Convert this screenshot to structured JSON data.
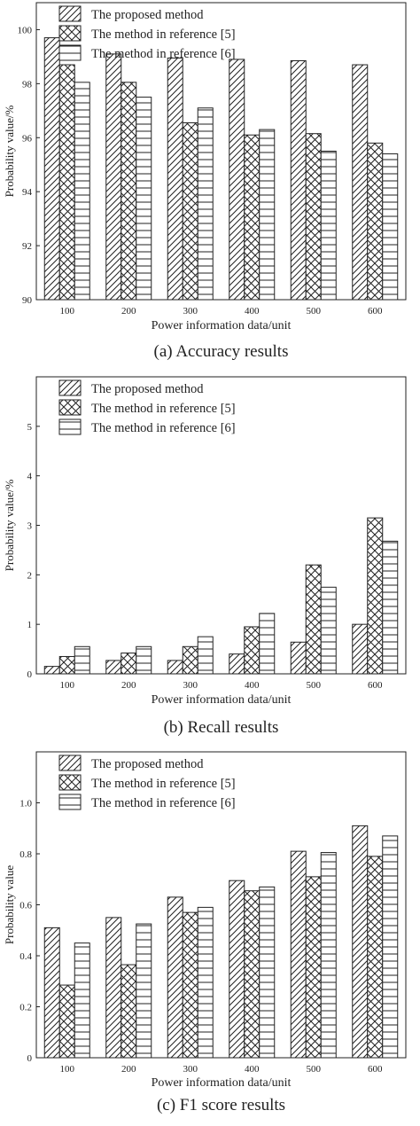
{
  "patterns": {
    "hatch": "diagonal-hatch",
    "cross": "cross-hatch",
    "horiz": "horizontal-lines"
  },
  "chart_data": [
    {
      "type": "bar",
      "title": "",
      "caption": "(a) Accuracy results",
      "xlabel": "Power information data/unit",
      "ylabel": "Probability value/%",
      "categories": [
        "100",
        "200",
        "300",
        "400",
        "500",
        "600"
      ],
      "ylim": [
        90,
        101
      ],
      "yticks": [
        "90",
        "92",
        "94",
        "96",
        "98",
        "100"
      ],
      "legend_position": "top-left",
      "series": [
        {
          "name": "The proposed method",
          "values": [
            99.7,
            99.1,
            98.95,
            98.9,
            98.85,
            98.7
          ]
        },
        {
          "name": "The method in reference [5]",
          "values": [
            98.7,
            98.05,
            96.55,
            96.1,
            96.15,
            95.8
          ]
        },
        {
          "name": "The method in reference [6]",
          "values": [
            98.05,
            97.5,
            97.1,
            96.3,
            95.5,
            95.4
          ]
        }
      ]
    },
    {
      "type": "bar",
      "title": "",
      "caption": "(b) Recall results",
      "xlabel": "Power information data/unit",
      "ylabel": "Probability value/%",
      "categories": [
        "100",
        "200",
        "300",
        "400",
        "500",
        "600"
      ],
      "ylim": [
        0,
        6
      ],
      "yticks": [
        "0",
        "1",
        "2",
        "3",
        "4",
        "5"
      ],
      "legend_position": "top-left",
      "series": [
        {
          "name": "The proposed method",
          "values": [
            0.15,
            0.27,
            0.27,
            0.4,
            0.64,
            1.0
          ]
        },
        {
          "name": "The method in reference [5]",
          "values": [
            0.35,
            0.42,
            0.55,
            0.95,
            2.2,
            3.15
          ]
        },
        {
          "name": "The method in reference [6]",
          "values": [
            0.55,
            0.55,
            0.75,
            1.22,
            1.75,
            2.68
          ]
        }
      ]
    },
    {
      "type": "bar",
      "title": "",
      "caption": "(c) F1 score results",
      "xlabel": "Power information data/unit",
      "ylabel": "Probability value",
      "categories": [
        "100",
        "200",
        "300",
        "400",
        "500",
        "600"
      ],
      "ylim": [
        0,
        1.2
      ],
      "yticks": [
        "0",
        "0.2",
        "0.4",
        "0.6",
        "0.8",
        "1.0"
      ],
      "legend_position": "top-left",
      "series": [
        {
          "name": "The proposed method",
          "values": [
            0.51,
            0.55,
            0.63,
            0.695,
            0.81,
            0.91
          ]
        },
        {
          "name": "The method in reference [5]",
          "values": [
            0.285,
            0.365,
            0.57,
            0.655,
            0.71,
            0.79
          ]
        },
        {
          "name": "The method in reference [6]",
          "values": [
            0.45,
            0.525,
            0.59,
            0.67,
            0.805,
            0.87
          ]
        }
      ]
    }
  ]
}
